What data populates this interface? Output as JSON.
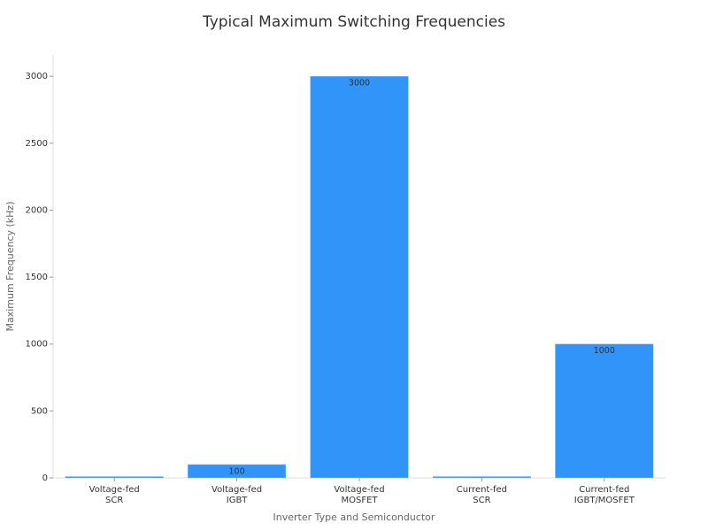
{
  "chart_data": {
    "type": "bar",
    "title": "Typical Maximum Switching Frequencies",
    "x_label": "Inverter Type and Semiconductor",
    "y_label": "Maximum Frequency (kHz)",
    "categories": [
      "Voltage-fed\nSCR",
      "Voltage-fed\nIGBT",
      "Voltage-fed\nMOSFET",
      "Current-fed\nSCR",
      "Current-fed\nIGBT/MOSFET"
    ],
    "values": [
      10,
      100,
      3000,
      10,
      1000
    ],
    "color": "#3094f8",
    "ylim": [
      0,
      3160
    ],
    "yticks": [
      0,
      500,
      1000,
      1500,
      2000,
      2500,
      3000
    ],
    "grid": false
  }
}
